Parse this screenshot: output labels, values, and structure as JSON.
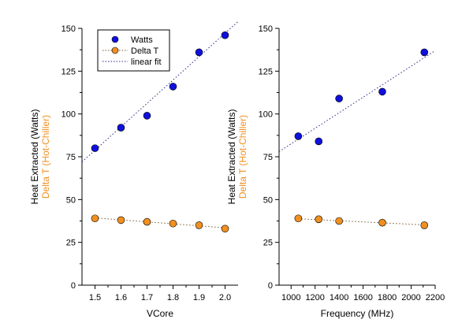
{
  "legend": {
    "watts": "Watts",
    "delta_t": "Delta T",
    "fit": "linear fit"
  },
  "colors": {
    "watts": "#1010dd",
    "delta_t": "#f09020",
    "fit_watts": "#2a2a8a",
    "fit_delta": "#7a5a2a"
  },
  "chart_data": [
    {
      "type": "scatter",
      "xlabel": "VCore",
      "ylabel_1": "Heat Extracted (Watts)",
      "ylabel_2": "Delta T (Hot-Chiller)",
      "xlim": [
        1.45,
        2.05
      ],
      "ylim": [
        0,
        150
      ],
      "x_ticks": [
        1.5,
        1.6,
        1.7,
        1.8,
        1.9,
        2.0
      ],
      "x_tick_labels": [
        "1.5",
        "1.6",
        "1.7",
        "1.8",
        "1.9",
        "2.0"
      ],
      "y_ticks": [
        0,
        25,
        50,
        75,
        100,
        125,
        150
      ],
      "legend_position": "top-left",
      "series": [
        {
          "name": "Watts",
          "x": [
            1.5,
            1.6,
            1.7,
            1.8,
            1.9,
            2.0
          ],
          "y": [
            80,
            92,
            99,
            116,
            136,
            146
          ]
        },
        {
          "name": "Delta T",
          "x": [
            1.5,
            1.6,
            1.7,
            1.8,
            1.9,
            2.0
          ],
          "y": [
            39,
            38,
            37,
            36,
            35,
            33
          ]
        }
      ],
      "fits": [
        {
          "name": "linear fit",
          "series": "Watts",
          "x": [
            1.45,
            2.05
          ],
          "y": [
            72,
            154
          ]
        },
        {
          "name": "linear fit",
          "series": "Delta T",
          "x": [
            1.5,
            2.0
          ],
          "y": [
            39.3,
            33.5
          ]
        }
      ]
    },
    {
      "type": "scatter",
      "xlabel": "Frequency (MHz)",
      "ylabel_1": "Heat Extracted (Watts)",
      "ylabel_2": "Delta T (Hot-Chiller)",
      "xlim": [
        900,
        2200
      ],
      "ylim": [
        0,
        150
      ],
      "x_ticks": [
        1000,
        1200,
        1400,
        1600,
        1800,
        2000,
        2200
      ],
      "x_tick_labels": [
        "1000",
        "1200",
        "1400",
        "1600",
        "1800",
        "2000",
        "2200"
      ],
      "y_ticks": [
        0,
        25,
        50,
        75,
        100,
        125,
        150
      ],
      "series": [
        {
          "name": "Watts",
          "x": [
            1060,
            1230,
            1400,
            1760,
            2110
          ],
          "y": [
            87,
            84,
            109,
            113,
            136
          ]
        },
        {
          "name": "Delta T",
          "x": [
            1060,
            1230,
            1400,
            1760,
            2110
          ],
          "y": [
            39,
            38.5,
            37.5,
            36.5,
            35
          ]
        }
      ],
      "fits": [
        {
          "name": "linear fit",
          "series": "Watts",
          "x": [
            900,
            2200
          ],
          "y": [
            78,
            137
          ]
        },
        {
          "name": "linear fit",
          "series": "Delta T",
          "x": [
            1060,
            2110
          ],
          "y": [
            38.8,
            35.2
          ]
        }
      ]
    }
  ]
}
